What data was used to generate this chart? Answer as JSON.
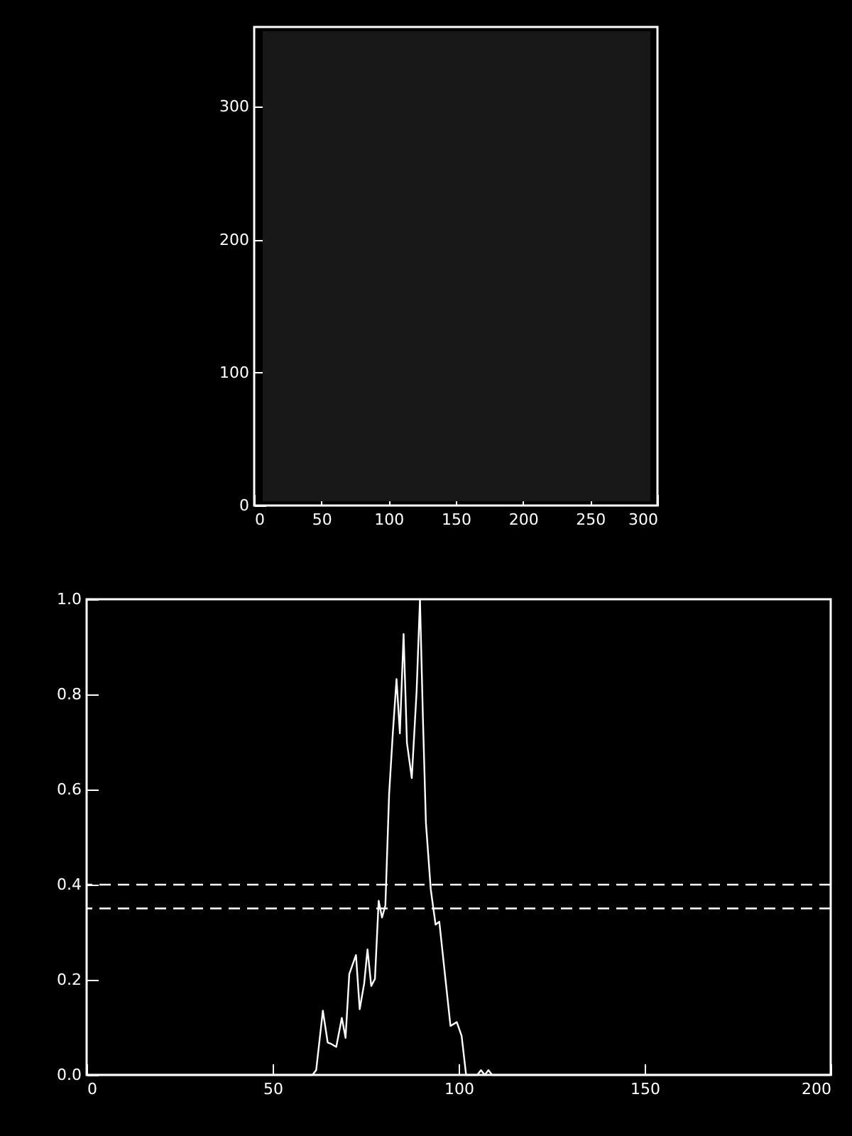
{
  "chart_data": [
    {
      "type": "scatter",
      "xlim": [
        0,
        300
      ],
      "ylim": [
        0,
        360
      ],
      "xticks": [
        0,
        50,
        100,
        150,
        200,
        250,
        300
      ],
      "yticks": [
        0,
        100,
        200,
        300
      ]
    },
    {
      "type": "line",
      "xlim": [
        0,
        200
      ],
      "ylim": [
        0,
        1
      ],
      "xticks": [
        0,
        50,
        100,
        150,
        200
      ],
      "yticks": [
        {
          "value": 0,
          "label": "0.0"
        },
        {
          "value": 0.2,
          "label": "0.2"
        },
        {
          "value": 0.4,
          "label": "0.4"
        },
        {
          "value": 0.6,
          "label": "0.6"
        },
        {
          "value": 0.8,
          "label": "0.8"
        },
        {
          "value": 1,
          "label": "1.0"
        }
      ],
      "x": [
        0,
        60.7,
        61.7,
        63.5,
        64.8,
        65.8,
        67.1,
        68.6,
        69.6,
        70.6,
        72.4,
        73.4,
        74.6,
        75.5,
        76.5,
        77.5,
        78.5,
        79.4,
        80.3,
        81.3,
        82.3,
        83.3,
        84.2,
        85.2,
        86.1,
        87.4,
        88.7,
        89.6,
        90.4,
        91.2,
        92.5,
        93.8,
        94.8,
        96.3,
        97.8,
        99.5,
        100.8,
        102,
        105,
        106,
        107,
        108,
        109,
        200
      ],
      "series": [
        {
          "color": "#ffffff",
          "values": [
            0,
            0,
            0.01,
            0.135,
            0.068,
            0.065,
            0.059,
            0.12,
            0.078,
            0.212,
            0.252,
            0.138,
            0.192,
            0.264,
            0.187,
            0.202,
            0.366,
            0.331,
            0.356,
            0.589,
            0.718,
            0.832,
            0.718,
            0.927,
            0.698,
            0.624,
            0.807,
            1.0,
            0.748,
            0.53,
            0.39,
            0.316,
            0.322,
            0.212,
            0.103,
            0.111,
            0.082,
            0,
            0,
            0.01,
            0,
            0.01,
            0,
            0
          ]
        }
      ],
      "ref_lines": [
        {
          "axis": "y",
          "value": 0.4,
          "color": "#ffffff",
          "line_style": "dashed"
        },
        {
          "axis": "y",
          "value": 0.35,
          "color": "#ffffff",
          "line_style": "dashed"
        }
      ],
      "line_style": "solid",
      "grid": false
    }
  ]
}
